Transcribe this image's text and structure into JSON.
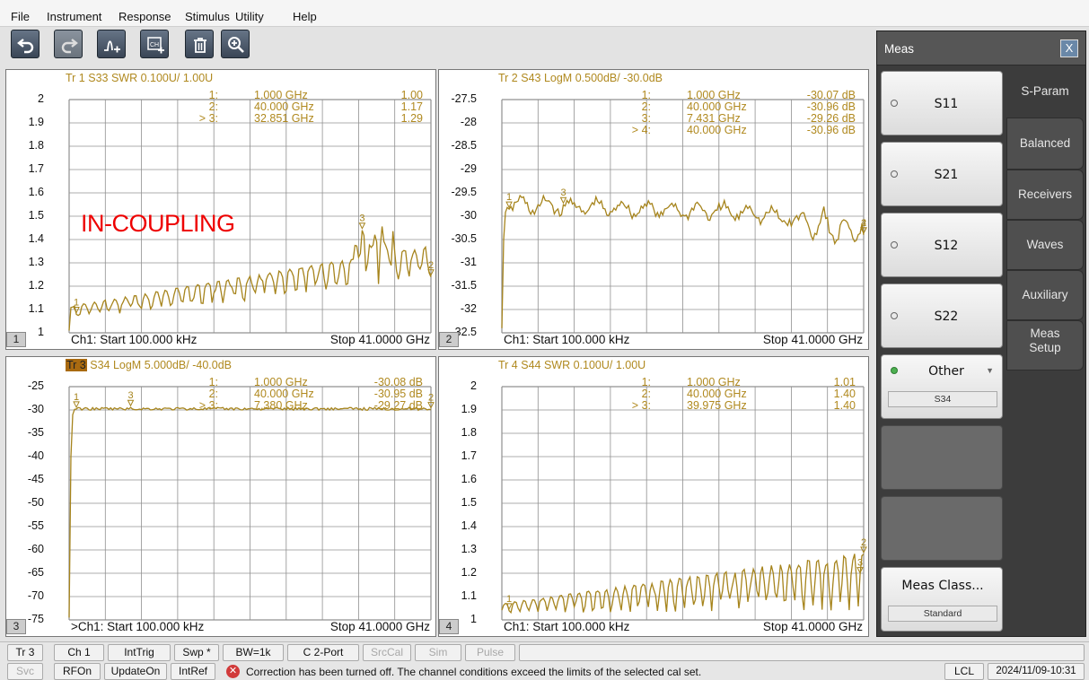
{
  "menu": [
    "File",
    "Instrument",
    "Response",
    "Stimulus",
    "Utility",
    "Help"
  ],
  "toolbar": [
    {
      "name": "undo-button",
      "icon": "undo-icon"
    },
    {
      "name": "redo-button",
      "icon": "redo-icon"
    },
    {
      "name": "add-trace-button",
      "icon": "add-trace-icon"
    },
    {
      "name": "add-channel-button",
      "icon": "add-channel-icon"
    },
    {
      "name": "delete-button",
      "icon": "trash-icon"
    },
    {
      "name": "zoom-button",
      "icon": "zoom-in-icon"
    }
  ],
  "overlay_label": "IN-COUPLING",
  "windows": [
    {
      "num": "1",
      "title_trace": "Tr  1",
      "title": "  S33 SWR 0.100U/  1.00U",
      "highlight": false,
      "yticks": [
        "2",
        "1.9",
        "1.8",
        "1.7",
        "1.6",
        "1.5",
        "1.4",
        "1.3",
        "1.2",
        "1.1",
        "1"
      ],
      "footer_start": "Ch1:  Start  100.000 kHz",
      "footer_stop": "Stop  41.0000 GHz",
      "markers": [
        {
          "id": "1:",
          "freq": "1.000  GHz",
          "val": "1.00"
        },
        {
          "id": "2:",
          "freq": "40.000  GHz",
          "val": "1.17"
        },
        {
          "id": "> 3:",
          "freq": "32.851  GHz",
          "val": "1.29"
        }
      ]
    },
    {
      "num": "2",
      "title_trace": "Tr  2",
      "title": "  S43 LogM 0.500dB/  -30.0dB",
      "highlight": false,
      "yticks": [
        "-27.5",
        "-28",
        "-28.5",
        "-29",
        "-29.5",
        "-30",
        "-30.5",
        "-31",
        "-31.5",
        "-32",
        "-32.5"
      ],
      "footer_start": "Ch1:  Start  100.000 kHz",
      "footer_stop": "Stop  41.0000 GHz",
      "markers": [
        {
          "id": "1:",
          "freq": "1.000  GHz",
          "val": "-30.07 dB"
        },
        {
          "id": "2:",
          "freq": "40.000  GHz",
          "val": "-30.96 dB"
        },
        {
          "id": "3:",
          "freq": "7.431  GHz",
          "val": "-29.26 dB"
        },
        {
          "id": "> 4:",
          "freq": "40.000  GHz",
          "val": "-30.96 dB"
        }
      ]
    },
    {
      "num": "3",
      "title_trace": "Tr  3",
      "title": "  S34 LogM 5.000dB/  -40.0dB",
      "highlight": true,
      "yticks": [
        "-25",
        "-30",
        "-35",
        "-40",
        "-45",
        "-50",
        "-55",
        "-60",
        "-65",
        "-70",
        "-75"
      ],
      "footer_start": ">Ch1:  Start  100.000 kHz",
      "footer_stop": "Stop  41.0000 GHz",
      "markers": [
        {
          "id": "1:",
          "freq": "1.000  GHz",
          "val": "-30.08 dB"
        },
        {
          "id": "2:",
          "freq": "40.000  GHz",
          "val": "-30.95 dB"
        },
        {
          "id": "> 3:",
          "freq": "7.380  GHz",
          "val": "-29.27 dB"
        }
      ]
    },
    {
      "num": "4",
      "title_trace": "Tr  4",
      "title": "  S44 SWR 0.100U/  1.00U",
      "highlight": false,
      "yticks": [
        "2",
        "1.9",
        "1.8",
        "1.7",
        "1.6",
        "1.5",
        "1.4",
        "1.3",
        "1.2",
        "1.1",
        "1"
      ],
      "footer_start": "Ch1:  Start  100.000 kHz",
      "footer_stop": "Stop  41.0000 GHz",
      "markers": [
        {
          "id": "1:",
          "freq": "1.000  GHz",
          "val": "1.01"
        },
        {
          "id": "2:",
          "freq": "40.000  GHz",
          "val": "1.40"
        },
        {
          "id": "> 3:",
          "freq": "39.975  GHz",
          "val": "1.40"
        }
      ]
    }
  ],
  "panel": {
    "title": "Meas",
    "close": "X",
    "buttons": [
      "S11",
      "S21",
      "S12",
      "S22"
    ],
    "other_label": "Other",
    "other_value": "S34",
    "meas_class_label": "Meas Class...",
    "meas_class_value": "Standard",
    "tabs": [
      "S-Param",
      "Balanced",
      "Receivers",
      "Waves",
      "Auxiliary",
      "Meas Setup"
    ]
  },
  "status_row1": [
    "Tr 3",
    "Ch 1",
    "IntTrig",
    "Swp *",
    "BW=1k",
    "C  2-Port",
    "SrcCal",
    "Sim",
    "Pulse"
  ],
  "status_row2": [
    "Svc",
    "RFOn",
    "UpdateOn",
    "IntRef"
  ],
  "status_message": "Correction has been turned off. The channel conditions exceed the limits of the selected cal set.",
  "status_lcl": "LCL",
  "status_datetime": "2024/11/09-10:31",
  "colors": {
    "trace": "#a6841c",
    "grid": "#909090",
    "panel": "#3c3c3c",
    "overlay": "#e00000"
  }
}
